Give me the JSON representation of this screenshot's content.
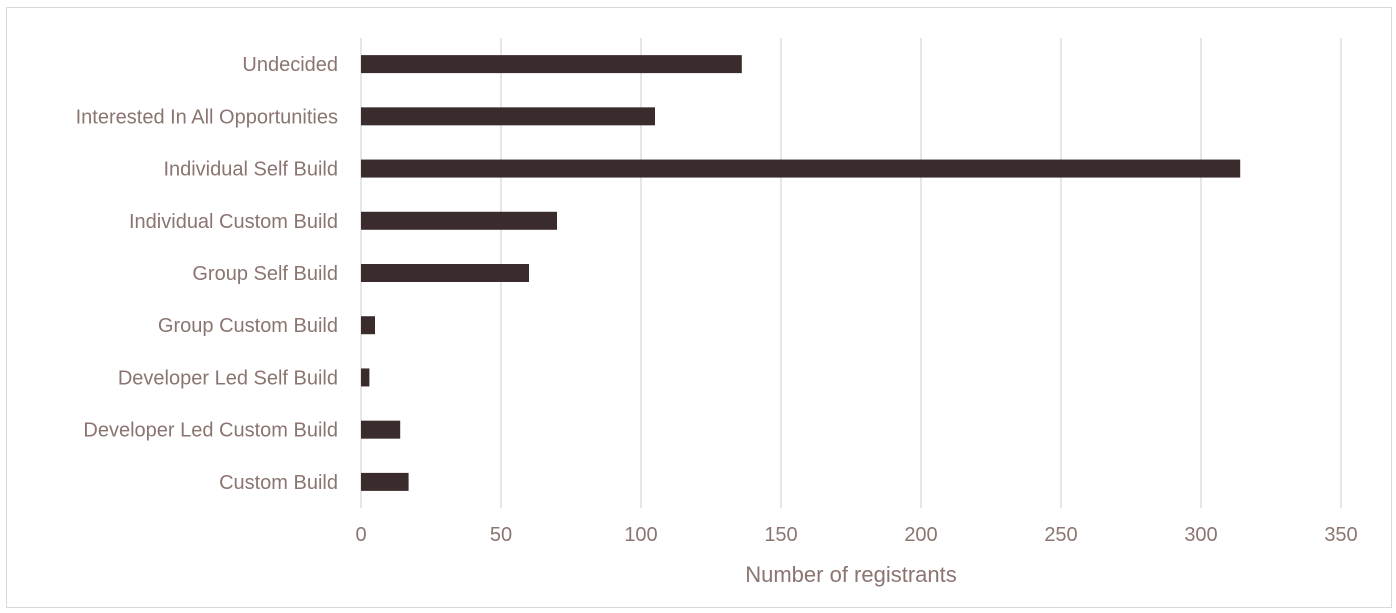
{
  "chart_data": {
    "type": "bar",
    "orientation": "horizontal",
    "categories": [
      "Undecided",
      "Interested In All Opportunities",
      "Individual Self Build",
      "Individual Custom Build",
      "Group Self Build",
      "Group Custom Build",
      "Developer Led Self Build",
      "Developer Led Custom Build",
      "Custom Build"
    ],
    "values": [
      136,
      105,
      314,
      70,
      60,
      5,
      3,
      14,
      17
    ],
    "xlabel": "Number of registrants",
    "ylabel": "",
    "xlim": [
      0,
      350
    ],
    "x_ticks": [
      "0",
      "50",
      "100",
      "150",
      "200",
      "250",
      "300",
      "350"
    ],
    "grid": "vertical",
    "legend": "none",
    "bar_color": "#3a2c2c",
    "text_color": "#8a7570",
    "grid_color": "#d9d9d9"
  }
}
